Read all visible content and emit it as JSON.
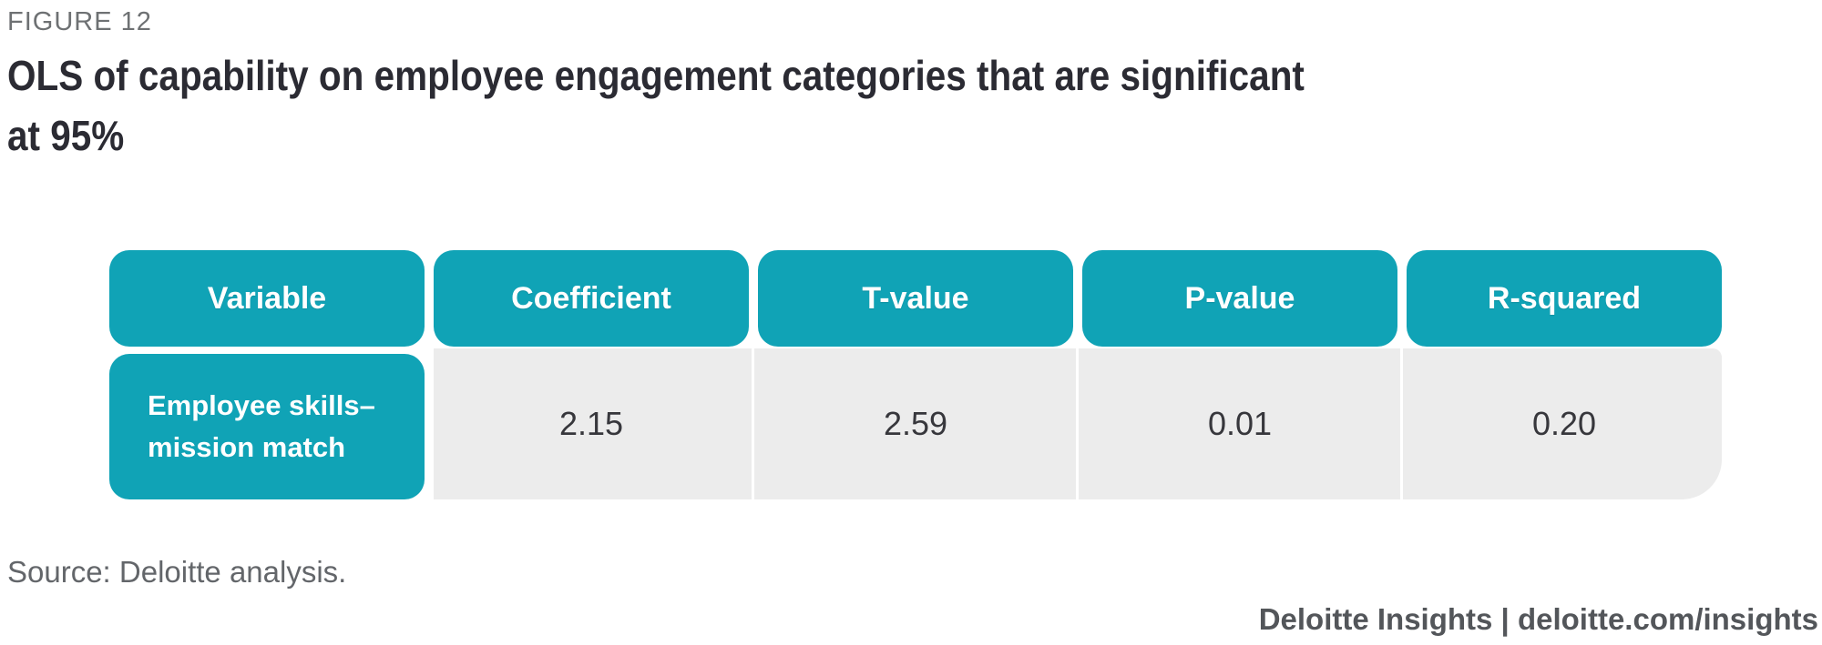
{
  "figure": {
    "label": "FIGURE 12",
    "title_line1": "OLS of capability on employee engagement categories that are significant",
    "title_line2": "at 95%"
  },
  "chart_data": {
    "type": "table",
    "title": "OLS of capability on employee engagement categories that are significant at 95%",
    "columns": [
      "Variable",
      "Coefficient",
      "T-value",
      "P-value",
      "R-squared"
    ],
    "rows": [
      {
        "variable": "Employee skills–mission match",
        "coefficient": "2.15",
        "t_value": "2.59",
        "p_value": "0.01",
        "r_squared": "0.20"
      }
    ],
    "layout_hints": {
      "header_style": "teal rounded pills",
      "row_style": "light gray band with white separators"
    }
  },
  "footer": {
    "source": "Source: Deloitte analysis.",
    "brand": "Deloitte Insights | deloitte.com/insights"
  },
  "colors": {
    "teal": "#10a3b6",
    "row_gray": "#ececec",
    "title_text": "#2b2b33",
    "muted_text": "#63666a"
  }
}
